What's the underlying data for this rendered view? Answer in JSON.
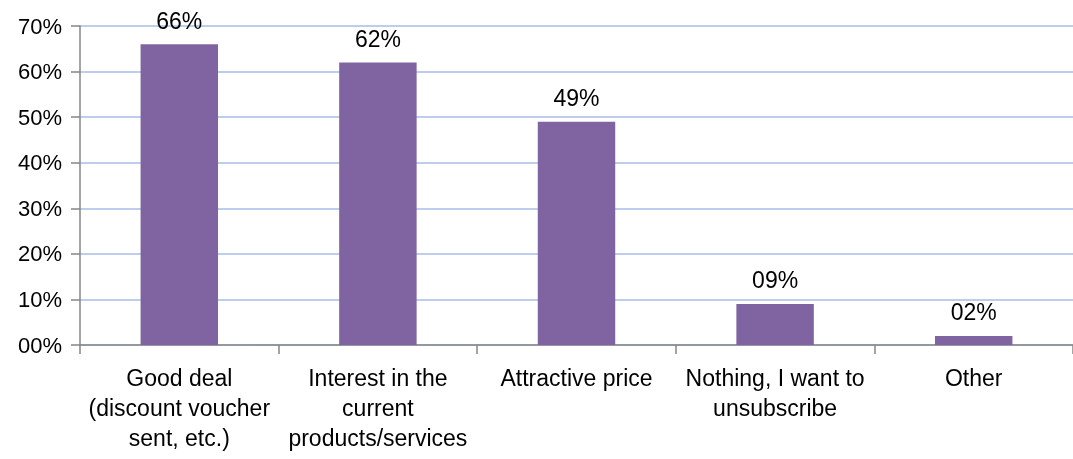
{
  "chart_data": {
    "type": "bar",
    "categories": [
      "Good deal (discount voucher sent, etc.)",
      "Interest in the current products/services",
      "Attractive price",
      "Nothing, I want to unsubscribe",
      "Other"
    ],
    "values": [
      66,
      62,
      49,
      9,
      2
    ],
    "value_labels": [
      "66%",
      "62%",
      "49%",
      "09%",
      "02%"
    ],
    "color": "#8064a2",
    "ylim": [
      0,
      70
    ],
    "yticks": [
      {
        "value": 0,
        "label": "00%"
      },
      {
        "value": 10,
        "label": "10%"
      },
      {
        "value": 20,
        "label": "20%"
      },
      {
        "value": 30,
        "label": "30%"
      },
      {
        "value": 40,
        "label": "40%"
      },
      {
        "value": 50,
        "label": "50%"
      },
      {
        "value": 60,
        "label": "60%"
      },
      {
        "value": 70,
        "label": "70%"
      }
    ],
    "grid": "y"
  }
}
